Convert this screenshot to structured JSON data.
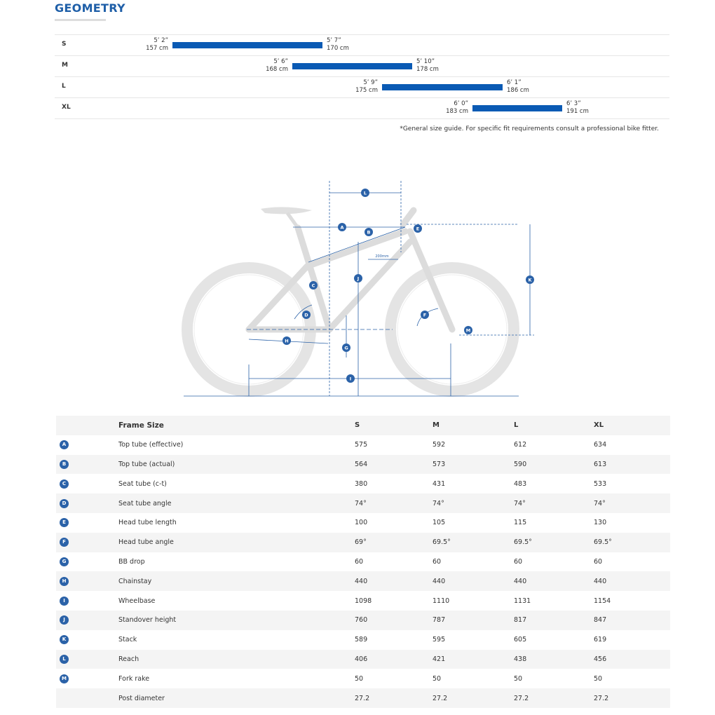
{
  "header": {
    "title": "GEOMETRY"
  },
  "size_guide": {
    "rows": [
      {
        "size": "S",
        "min_ft": "5’ 2”",
        "min_cm": "157 cm",
        "max_ft": "5’ 7”",
        "max_cm": "170 cm"
      },
      {
        "size": "M",
        "min_ft": "5’ 6”",
        "min_cm": "168 cm",
        "max_ft": "5’ 10”",
        "max_cm": "178 cm"
      },
      {
        "size": "L",
        "min_ft": "5’ 9”",
        "min_cm": "175 cm",
        "max_ft": "6’ 1”",
        "max_cm": "186 cm"
      },
      {
        "size": "XL",
        "min_ft": "6’ 0”",
        "min_cm": "183 cm",
        "max_ft": "6’ 3”",
        "max_cm": "191 cm"
      }
    ],
    "note": "*General size guide. For specific fit requirements consult a professional bike fitter."
  },
  "diagram": {
    "note": "200mm"
  },
  "geometry": {
    "columns": [
      "Frame Size",
      "S",
      "M",
      "L",
      "XL"
    ],
    "rows": [
      {
        "letter": "A",
        "name": "Top tube (effective)",
        "values": [
          "575",
          "592",
          "612",
          "634"
        ]
      },
      {
        "letter": "B",
        "name": "Top tube (actual)",
        "values": [
          "564",
          "573",
          "590",
          "613"
        ]
      },
      {
        "letter": "C",
        "name": "Seat tube (c-t)",
        "values": [
          "380",
          "431",
          "483",
          "533"
        ]
      },
      {
        "letter": "D",
        "name": "Seat tube angle",
        "values": [
          "74°",
          "74°",
          "74°",
          "74°"
        ]
      },
      {
        "letter": "E",
        "name": "Head tube length",
        "values": [
          "100",
          "105",
          "115",
          "130"
        ]
      },
      {
        "letter": "F",
        "name": "Head tube angle",
        "values": [
          "69°",
          "69.5°",
          "69.5°",
          "69.5°"
        ]
      },
      {
        "letter": "G",
        "name": "BB drop",
        "values": [
          "60",
          "60",
          "60",
          "60"
        ]
      },
      {
        "letter": "H",
        "name": "Chainstay",
        "values": [
          "440",
          "440",
          "440",
          "440"
        ]
      },
      {
        "letter": "I",
        "name": "Wheelbase",
        "values": [
          "1098",
          "1110",
          "1131",
          "1154"
        ]
      },
      {
        "letter": "J",
        "name": "Standover height",
        "values": [
          "760",
          "787",
          "817",
          "847"
        ]
      },
      {
        "letter": "K",
        "name": "Stack",
        "values": [
          "589",
          "595",
          "605",
          "619"
        ]
      },
      {
        "letter": "L",
        "name": "Reach",
        "values": [
          "406",
          "421",
          "438",
          "456"
        ]
      },
      {
        "letter": "M",
        "name": "Fork rake",
        "values": [
          "50",
          "50",
          "50",
          "50"
        ]
      },
      {
        "letter": null,
        "name": "Post diameter",
        "values": [
          "27.2",
          "27.2",
          "27.2",
          "27.2"
        ]
      }
    ]
  }
}
